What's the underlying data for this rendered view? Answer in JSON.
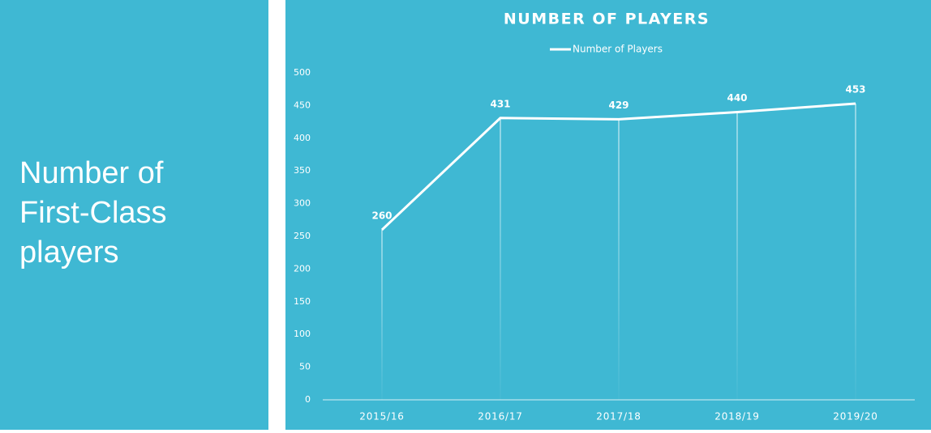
{
  "heading": [
    "Number of",
    "First-Class",
    "players"
  ],
  "chart_data": {
    "type": "line",
    "title": "NUMBER OF PLAYERS",
    "categories": [
      "2015/16",
      "2016/17",
      "2017/18",
      "2018/19",
      "2019/20"
    ],
    "series": [
      {
        "name": "Number of Players",
        "color": "#ffffff",
        "values": [
          260,
          431,
          429,
          440,
          453
        ]
      }
    ],
    "ylim": [
      0,
      500
    ],
    "yticks": [
      0,
      50,
      100,
      150,
      200,
      250,
      300,
      350,
      400,
      450,
      500
    ],
    "data_labels": true,
    "drop_lines": true,
    "legend": "top"
  }
}
